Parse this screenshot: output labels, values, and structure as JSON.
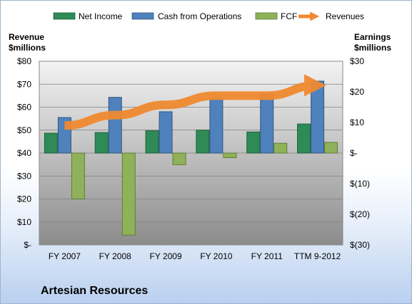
{
  "chart_data": {
    "type": "bar",
    "company": "Artesian Resources",
    "categories": [
      "FY 2007",
      "FY 2008",
      "FY 2009",
      "FY 2010",
      "FY 2011",
      "TTM 9-2012"
    ],
    "legend": [
      "Net Income",
      "Cash from Operations",
      "FCF",
      "Revenues"
    ],
    "left_axis": {
      "title_line1": "Revenue",
      "title_line2": "$millions",
      "ticks": [
        "$80",
        "$70",
        "$60",
        "$50",
        "$40",
        "$30",
        "$20",
        "$10",
        "$-"
      ],
      "range": [
        0,
        80
      ]
    },
    "right_axis": {
      "title_line1": "Earnings",
      "title_line2": "$millions",
      "ticks": [
        "$30",
        "$20",
        "$10",
        "$-",
        "$(10)",
        "$(20)",
        "$(30)"
      ],
      "range": [
        -30,
        30
      ]
    },
    "series": [
      {
        "name": "Net Income",
        "axis": "right",
        "type": "bar",
        "color": "#2e8b57",
        "values": [
          6.5,
          6.7,
          7.3,
          7.5,
          6.9,
          9.5
        ]
      },
      {
        "name": "Cash from Operations",
        "axis": "right",
        "type": "bar",
        "color": "#4f81bd",
        "values": [
          11.6,
          18.2,
          13.5,
          18.0,
          19.3,
          23.5
        ]
      },
      {
        "name": "FCF",
        "axis": "right",
        "type": "bar",
        "color": "#8fb15a",
        "values": [
          -15.0,
          -26.8,
          -3.8,
          -1.5,
          3.2,
          3.5
        ]
      },
      {
        "name": "Revenues",
        "axis": "left",
        "type": "line",
        "color": "#f08a30",
        "values": [
          52.0,
          56.5,
          61.0,
          65.0,
          65.0,
          69.5
        ]
      }
    ],
    "grid": true
  }
}
